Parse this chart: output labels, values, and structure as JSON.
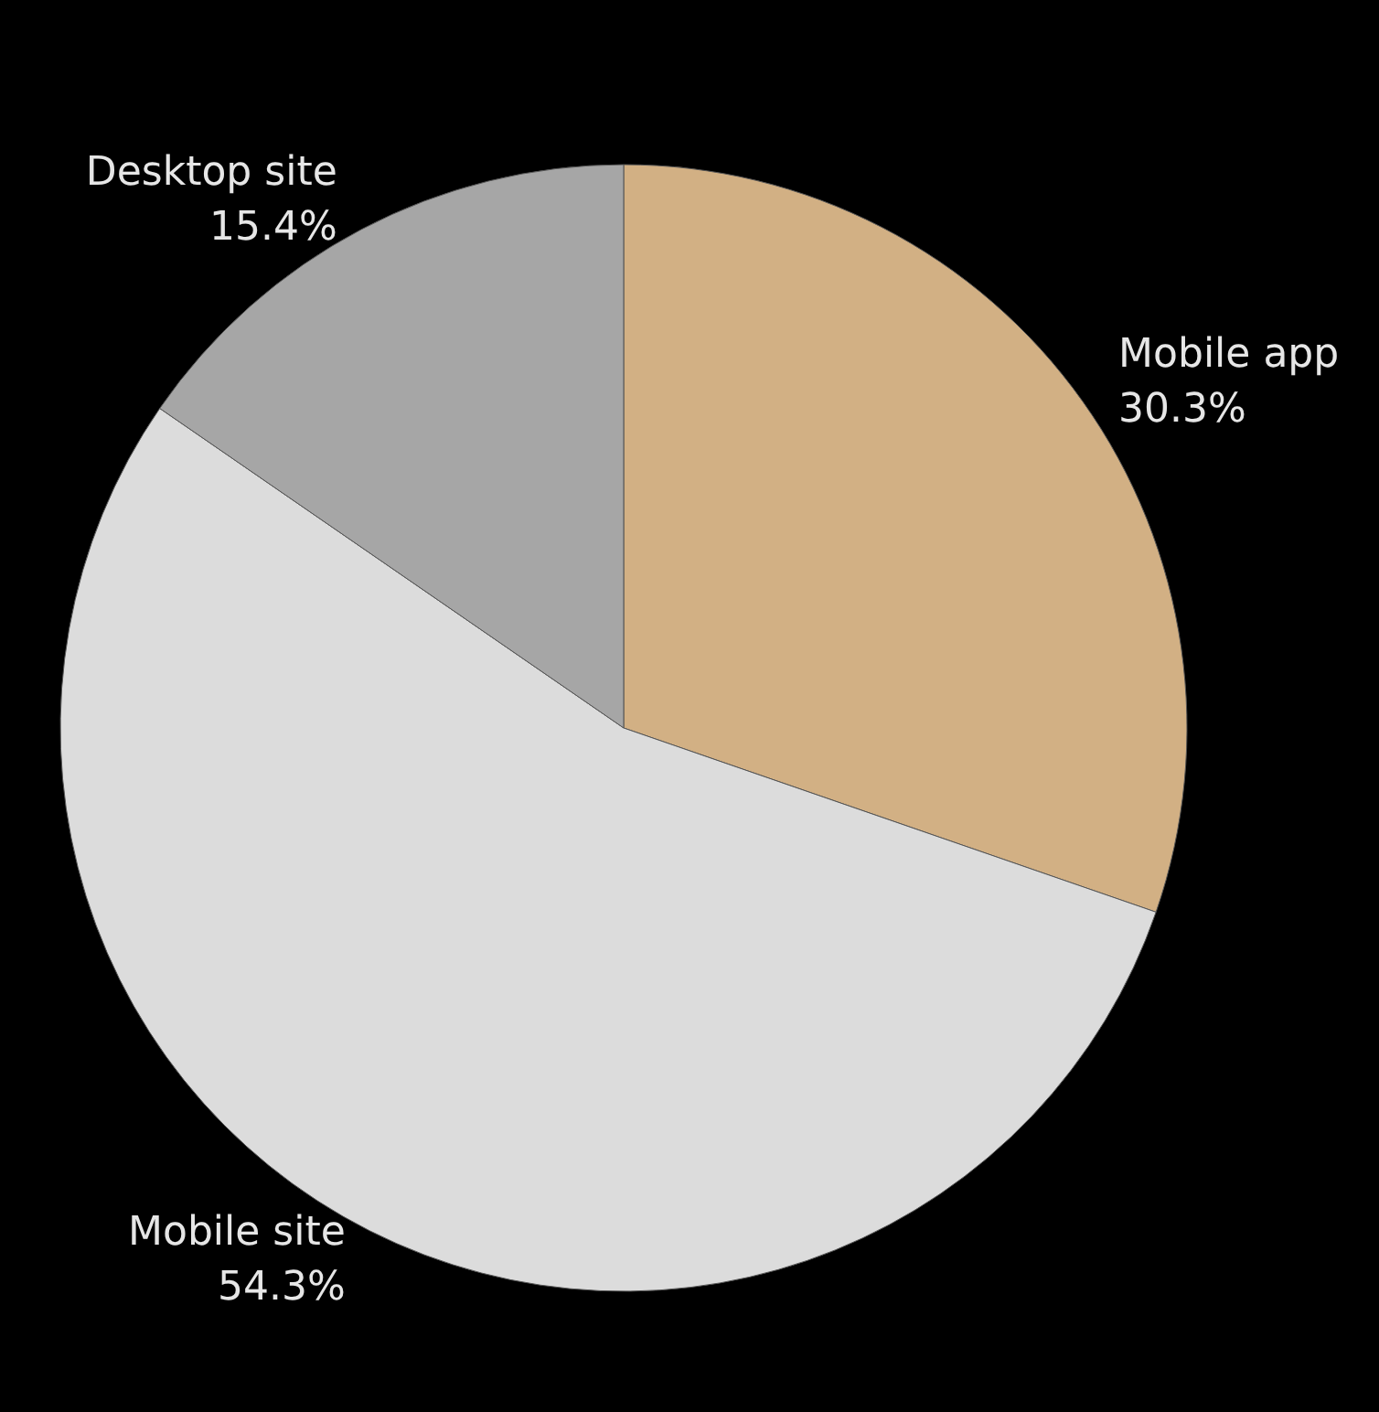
{
  "chart_data": {
    "type": "pie",
    "categories": [
      "Mobile app",
      "Mobile site",
      "Desktop site"
    ],
    "values": [
      30.3,
      54.3,
      15.4
    ],
    "colors": [
      "#d2b084",
      "#dcdcdc",
      "#a6a6a6"
    ],
    "value_labels": [
      "30.3%",
      "54.3%",
      "15.4%"
    ],
    "legend": false
  }
}
